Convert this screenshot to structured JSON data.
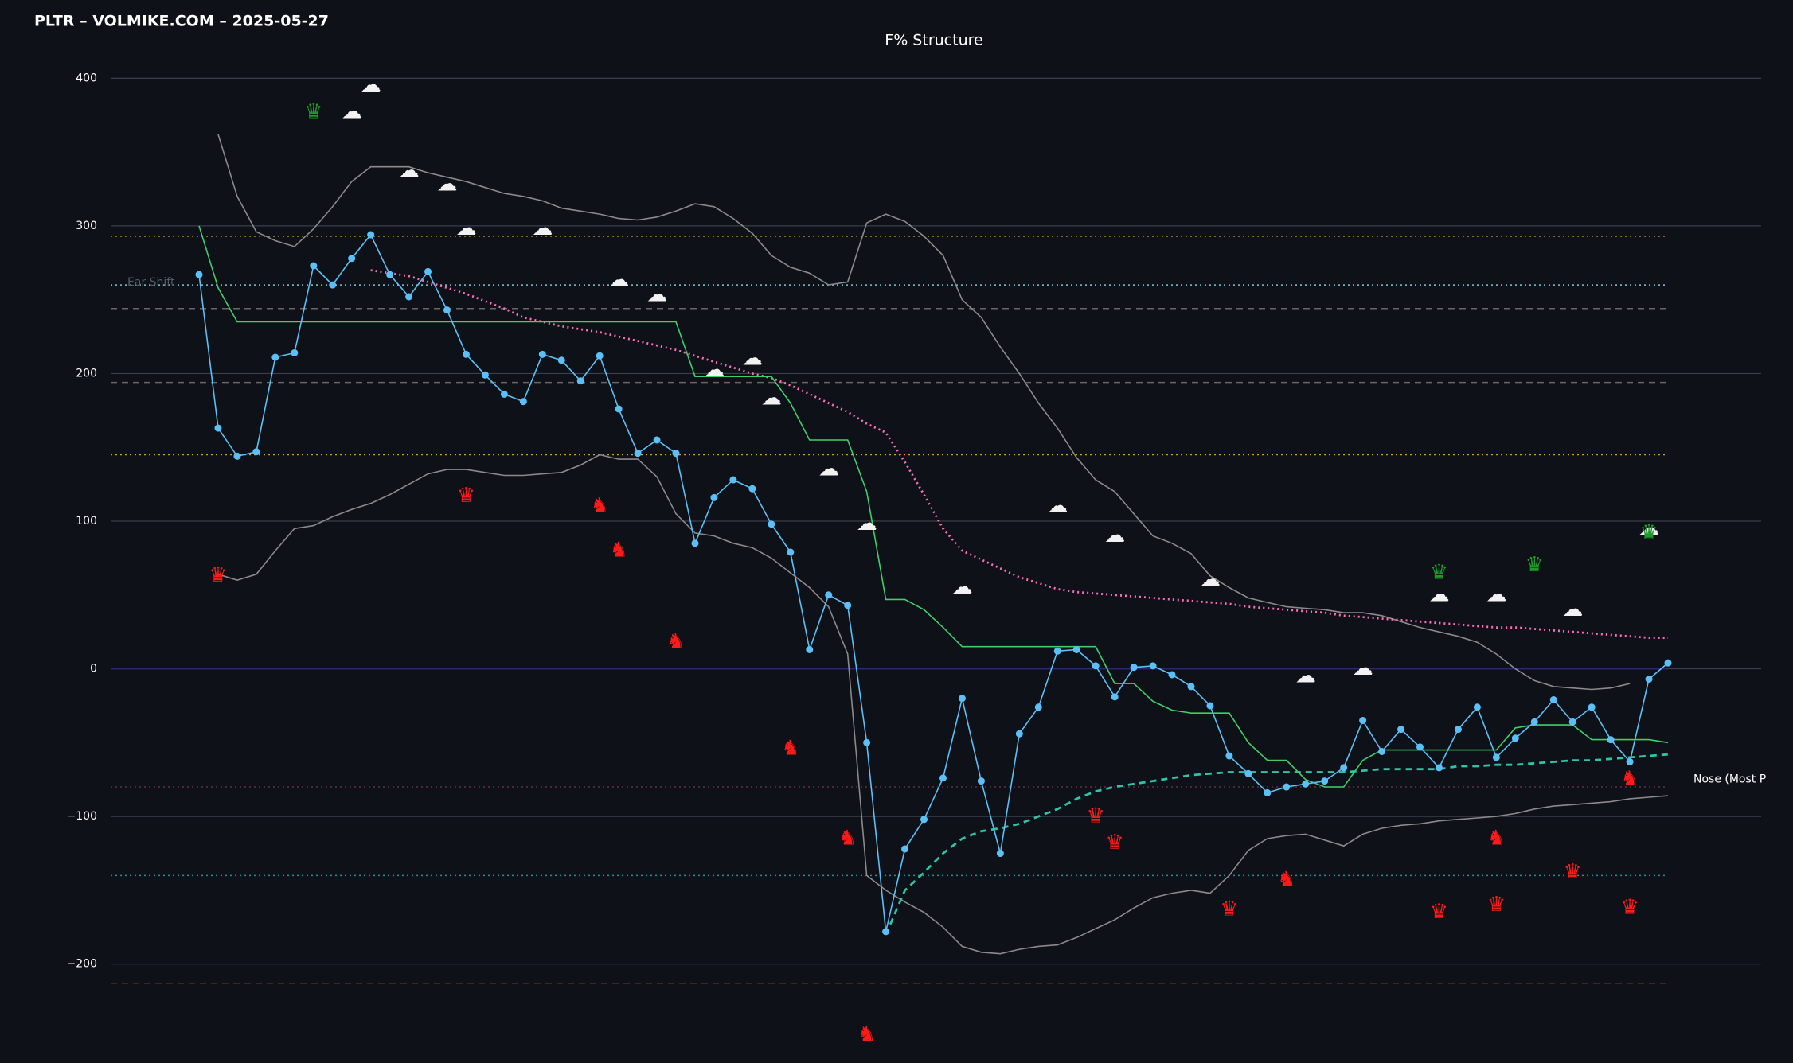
{
  "header": "PLTR – VOLMIKE.COM – 2025-05-27",
  "chart_data": {
    "type": "line",
    "title": "F% Structure",
    "annotations": [
      {
        "text": "Ear Shift",
        "value": 260
      },
      {
        "text": "Nose (Most P",
        "value": -75
      }
    ],
    "ylim": [
      -267,
      453
    ],
    "yticks": [
      400,
      300,
      200,
      100,
      0,
      {
        "value": -100,
        "label": "−100"
      },
      {
        "value": -200,
        "label": "−200"
      }
    ],
    "grid": true,
    "categories": [
      null,
      null,
      null,
      null,
      null,
      null,
      null,
      null,
      null,
      null,
      null,
      null,
      null,
      null,
      null,
      null,
      null,
      null,
      null,
      null,
      null,
      null,
      null,
      null,
      null,
      null,
      null,
      null,
      null,
      null,
      null,
      null,
      null,
      null,
      null,
      null,
      null,
      null,
      null,
      null,
      null,
      null,
      null,
      null,
      null,
      null,
      null,
      null,
      null,
      null,
      null,
      null,
      null,
      null,
      null,
      null,
      null,
      null,
      null,
      null,
      null,
      null,
      null,
      null,
      null,
      null,
      null,
      null,
      null,
      null,
      null,
      null,
      null,
      null,
      null,
      null,
      null,
      null
    ],
    "reference_lines": [
      {
        "value": 293,
        "color": "#c9a227",
        "style": "dotted"
      },
      {
        "value": 260,
        "color": "#7fc8d8",
        "style": "dotted"
      },
      {
        "value": 244,
        "color": "#666666",
        "style": "dashed"
      },
      {
        "value": 194,
        "color": "#666666",
        "style": "dashed"
      },
      {
        "value": 145,
        "color": "#c9a227",
        "style": "dotted"
      },
      {
        "value": 0,
        "color": "#2a2a6a",
        "style": "solid"
      },
      {
        "value": -80,
        "color": "#6a2a3a",
        "style": "dotted"
      },
      {
        "value": -140,
        "color": "#2a8a9a",
        "style": "dotted"
      },
      {
        "value": -213,
        "color": "#8a2a2a",
        "style": "dashed"
      }
    ],
    "series": [
      {
        "color": "#8a8a8a",
        "style": "solid",
        "markers": false,
        "values": [
          null,
          362,
          320,
          296,
          290,
          286,
          298,
          313,
          330,
          340,
          340,
          340,
          336,
          333,
          330,
          326,
          322,
          320,
          317,
          312,
          310,
          308,
          305,
          304,
          306,
          310,
          315,
          313,
          305,
          295,
          280,
          272,
          268,
          260,
          262,
          302,
          308,
          303,
          293,
          280,
          250,
          238,
          218,
          200,
          180,
          163,
          143,
          128,
          120,
          105,
          90,
          85,
          78,
          63,
          55,
          48,
          45,
          42,
          41,
          40,
          38,
          38,
          36,
          32,
          28,
          25,
          22,
          18,
          10,
          0,
          -8,
          -12,
          -13,
          -14,
          -13,
          -10,
          null,
          null
        ]
      },
      {
        "color": "#8a8a8a",
        "style": "solid",
        "markers": false,
        "values": [
          null,
          64,
          60,
          64,
          80,
          95,
          97,
          103,
          108,
          112,
          118,
          125,
          132,
          135,
          135,
          133,
          131,
          131,
          132,
          133,
          138,
          145,
          142,
          142,
          130,
          105,
          92,
          90,
          85,
          82,
          75,
          65,
          55,
          42,
          10,
          -140,
          -150,
          -158,
          -165,
          -175,
          -188,
          -192,
          -193,
          -190,
          -188,
          -187,
          -182,
          -176,
          -170,
          -162,
          -155,
          -152,
          -150,
          -152,
          -140,
          -123,
          -115,
          -113,
          -112,
          -116,
          -120,
          -112,
          -108,
          -106,
          -105,
          -103,
          -102,
          -101,
          -100,
          -98,
          -95,
          -93,
          -92,
          -91,
          -90,
          -88,
          -87,
          -86
        ]
      },
      {
        "color": "#ff6eb4",
        "style": "dotted",
        "markers": false,
        "values": [
          null,
          null,
          null,
          null,
          null,
          null,
          null,
          null,
          null,
          270,
          268,
          266,
          262,
          258,
          254,
          249,
          244,
          238,
          235,
          232,
          230,
          228,
          225,
          222,
          219,
          216,
          212,
          208,
          204,
          200,
          197,
          192,
          186,
          180,
          174,
          166,
          160,
          140,
          118,
          95,
          80,
          74,
          68,
          62,
          58,
          54,
          52,
          51,
          50,
          49,
          48,
          47,
          46,
          45,
          44,
          42,
          41,
          40,
          39,
          38,
          36,
          35,
          34,
          33,
          32,
          31,
          30,
          29,
          28,
          28,
          27,
          26,
          25,
          24,
          23,
          22,
          21,
          21
        ]
      },
      {
        "color": "#2ec4a6",
        "style": "dashed",
        "markers": false,
        "values": [
          null,
          null,
          null,
          null,
          null,
          null,
          null,
          null,
          null,
          null,
          null,
          null,
          null,
          null,
          null,
          null,
          null,
          null,
          null,
          null,
          null,
          null,
          null,
          null,
          null,
          null,
          null,
          null,
          null,
          null,
          null,
          null,
          null,
          null,
          null,
          null,
          -180,
          -150,
          -138,
          -125,
          -115,
          -110,
          -108,
          -105,
          -100,
          -95,
          -88,
          -83,
          -80,
          -78,
          -76,
          -74,
          -72,
          -71,
          -70,
          -70,
          -70,
          -70,
          -70,
          -70,
          -70,
          -69,
          -68,
          -68,
          -68,
          -68,
          -66,
          -66,
          -65,
          -65,
          -64,
          -63,
          -62,
          -62,
          -61,
          -60,
          -59,
          -58
        ]
      },
      {
        "color": "#3ecf6a",
        "style": "solid",
        "markers": false,
        "values": [
          300,
          258,
          235,
          235,
          235,
          235,
          235,
          235,
          235,
          235,
          235,
          235,
          235,
          235,
          235,
          235,
          235,
          235,
          235,
          235,
          235,
          235,
          235,
          235,
          235,
          235,
          198,
          198,
          198,
          198,
          198,
          180,
          155,
          155,
          155,
          120,
          47,
          47,
          40,
          28,
          15,
          15,
          15,
          15,
          15,
          15,
          15,
          15,
          -10,
          -10,
          -22,
          -28,
          -30,
          -30,
          -30,
          -50,
          -62,
          -62,
          -75,
          -80,
          -80,
          -62,
          -55,
          -55,
          -55,
          -55,
          -55,
          -55,
          -55,
          -40,
          -38,
          -38,
          -38,
          -48,
          -48,
          -48,
          -48,
          -50
        ]
      },
      {
        "color": "#5bc0f8",
        "style": "solid",
        "markers": true,
        "values": [
          267,
          163,
          144,
          147,
          211,
          214,
          273,
          260,
          278,
          294,
          267,
          252,
          269,
          243,
          213,
          199,
          186,
          181,
          213,
          209,
          195,
          212,
          176,
          146,
          155,
          146,
          85,
          116,
          128,
          122,
          98,
          79,
          13,
          50,
          43,
          -50,
          -178,
          -122,
          -102,
          -74,
          -20,
          -76,
          -125,
          -44,
          -26,
          12,
          13,
          2,
          -19,
          1,
          2,
          -4,
          -12,
          -25,
          -59,
          -71,
          -84,
          -80,
          -78,
          -76,
          -67,
          -35,
          -56,
          -41,
          -53,
          -67,
          -41,
          -26,
          -60,
          -47,
          -36,
          -21,
          -36,
          -26,
          -48,
          -63,
          -7,
          4
        ]
      }
    ],
    "markers": [
      {
        "symbol": "♛",
        "x": 1,
        "value": 63,
        "color": "#ff1a1a"
      },
      {
        "symbol": "♛",
        "x": 14,
        "value": 117,
        "color": "#ff1a1a"
      },
      {
        "symbol": "♛",
        "x": 47,
        "value": -100,
        "color": "#ff1a1a"
      },
      {
        "symbol": "♛",
        "x": 48,
        "value": -118,
        "color": "#ff1a1a"
      },
      {
        "symbol": "♛",
        "x": 54,
        "value": -163,
        "color": "#ff1a1a"
      },
      {
        "symbol": "♛",
        "x": 65,
        "value": -165,
        "color": "#ff1a1a"
      },
      {
        "symbol": "♛",
        "x": 68,
        "value": -160,
        "color": "#ff1a1a"
      },
      {
        "symbol": "♛",
        "x": 72,
        "value": -138,
        "color": "#ff1a1a"
      },
      {
        "symbol": "♛",
        "x": 75,
        "value": -162,
        "color": "#ff1a1a"
      },
      {
        "symbol": "♞",
        "x": 21,
        "value": 110,
        "color": "#ff1a1a"
      },
      {
        "symbol": "♞",
        "x": 22,
        "value": 80,
        "color": "#ff1a1a"
      },
      {
        "symbol": "♞",
        "x": 25,
        "value": 18,
        "color": "#ff1a1a"
      },
      {
        "symbol": "♞",
        "x": 31,
        "value": -54,
        "color": "#ff1a1a"
      },
      {
        "symbol": "♞",
        "x": 34,
        "value": -115,
        "color": "#ff1a1a"
      },
      {
        "symbol": "♞",
        "x": 35,
        "value": -248,
        "color": "#ff1a1a"
      },
      {
        "symbol": "♞",
        "x": 57,
        "value": -143,
        "color": "#ff1a1a"
      },
      {
        "symbol": "♞",
        "x": 68,
        "value": -115,
        "color": "#ff1a1a"
      },
      {
        "symbol": "♞",
        "x": 75,
        "value": -75,
        "color": "#ff1a1a"
      },
      {
        "symbol": "☁",
        "x": 9,
        "value": 395,
        "color": "#f2f2f2"
      },
      {
        "symbol": "☁",
        "x": 8,
        "value": 377,
        "color": "#f2f2f2"
      },
      {
        "symbol": "☁",
        "x": 11,
        "value": 337,
        "color": "#f2f2f2"
      },
      {
        "symbol": "☁",
        "x": 13,
        "value": 328,
        "color": "#f2f2f2"
      },
      {
        "symbol": "☁",
        "x": 14,
        "value": 298,
        "color": "#f2f2f2"
      },
      {
        "symbol": "☁",
        "x": 18,
        "value": 298,
        "color": "#f2f2f2"
      },
      {
        "symbol": "☁",
        "x": 22,
        "value": 263,
        "color": "#f2f2f2"
      },
      {
        "symbol": "☁",
        "x": 24,
        "value": 253,
        "color": "#f2f2f2"
      },
      {
        "symbol": "☁",
        "x": 27,
        "value": 202,
        "color": "#f2f2f2"
      },
      {
        "symbol": "☁",
        "x": 29,
        "value": 210,
        "color": "#f2f2f2"
      },
      {
        "symbol": "☁",
        "x": 30,
        "value": 183,
        "color": "#f2f2f2"
      },
      {
        "symbol": "☁",
        "x": 33,
        "value": 135,
        "color": "#f2f2f2"
      },
      {
        "symbol": "☁",
        "x": 35,
        "value": 98,
        "color": "#f2f2f2"
      },
      {
        "symbol": "☁",
        "x": 40,
        "value": 55,
        "color": "#f2f2f2"
      },
      {
        "symbol": "☁",
        "x": 45,
        "value": 110,
        "color": "#f2f2f2"
      },
      {
        "symbol": "☁",
        "x": 48,
        "value": 90,
        "color": "#f2f2f2"
      },
      {
        "symbol": "☁",
        "x": 53,
        "value": 60,
        "color": "#f2f2f2"
      },
      {
        "symbol": "☁",
        "x": 58,
        "value": -5,
        "color": "#f2f2f2"
      },
      {
        "symbol": "☁",
        "x": 61,
        "value": 0,
        "color": "#f2f2f2"
      },
      {
        "symbol": "☁",
        "x": 65,
        "value": 50,
        "color": "#f2f2f2"
      },
      {
        "symbol": "☁",
        "x": 68,
        "value": 50,
        "color": "#f2f2f2"
      },
      {
        "symbol": "☁",
        "x": 72,
        "value": 40,
        "color": "#f2f2f2"
      },
      {
        "symbol": "☁",
        "x": 76,
        "value": 95,
        "color": "#f2f2f2"
      },
      {
        "symbol": "♛",
        "x": 6,
        "value": 377,
        "color": "#1f9a2a"
      },
      {
        "symbol": "♛",
        "x": 65,
        "value": 65,
        "color": "#1f9a2a"
      },
      {
        "symbol": "♛",
        "x": 70,
        "value": 70,
        "color": "#1f9a2a"
      },
      {
        "symbol": "♛",
        "x": 76,
        "value": 92,
        "color": "#1f9a2a"
      }
    ]
  }
}
